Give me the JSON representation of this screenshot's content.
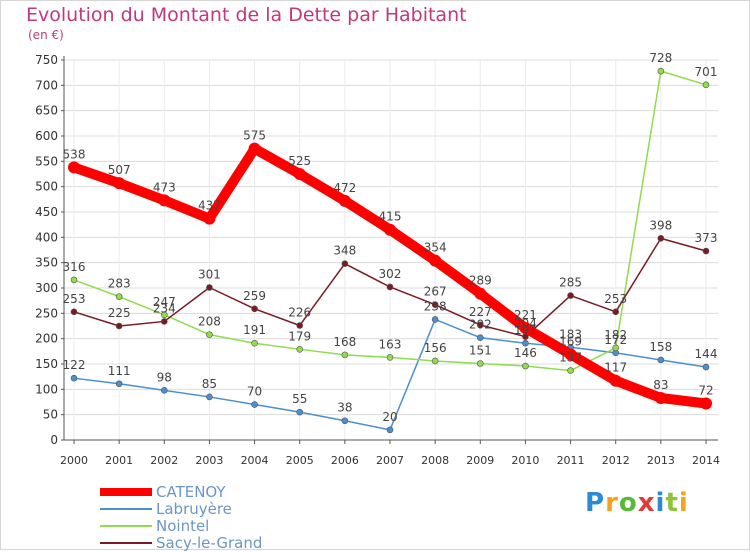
{
  "header": {
    "title": "Evolution du Montant de la Dette par Habitant",
    "unit": "(en €)"
  },
  "logo": {
    "text": "Proxiti"
  },
  "chart_data": {
    "type": "line",
    "title": "Evolution du Montant de la Dette par Habitant",
    "ylabel": "(en €)",
    "xlabel": "",
    "x": [
      "2000",
      "2001",
      "2002",
      "2003",
      "2004",
      "2005",
      "2006",
      "2007",
      "2008",
      "2009",
      "2010",
      "2011",
      "2012",
      "2013",
      "2014"
    ],
    "ylim": [
      0,
      750
    ],
    "yticks": [
      0,
      50,
      100,
      150,
      200,
      250,
      300,
      350,
      400,
      450,
      500,
      550,
      600,
      650,
      700,
      750
    ],
    "grid": true,
    "legend_position": "bottom-left",
    "series": [
      {
        "name": "CATENOY",
        "color": "#ff0000",
        "values": [
          538,
          507,
          473,
          437,
          575,
          525,
          472,
          415,
          354,
          289,
          221,
          169,
          117,
          83,
          72
        ]
      },
      {
        "name": "Labruyère",
        "color": "#4a8fd0",
        "values": [
          122,
          111,
          98,
          85,
          70,
          55,
          38,
          20,
          238,
          202,
          191,
          183,
          172,
          158,
          144
        ]
      },
      {
        "name": "Nointel",
        "color": "#8fdc4c",
        "values": [
          316,
          283,
          247,
          208,
          191,
          179,
          168,
          163,
          156,
          151,
          146,
          137,
          182,
          728,
          701
        ]
      },
      {
        "name": "Sacy-le-Grand",
        "color": "#7a1a22",
        "values": [
          253,
          225,
          234,
          301,
          259,
          226,
          348,
          302,
          267,
          227,
          204,
          285,
          253,
          398,
          373
        ]
      }
    ]
  }
}
